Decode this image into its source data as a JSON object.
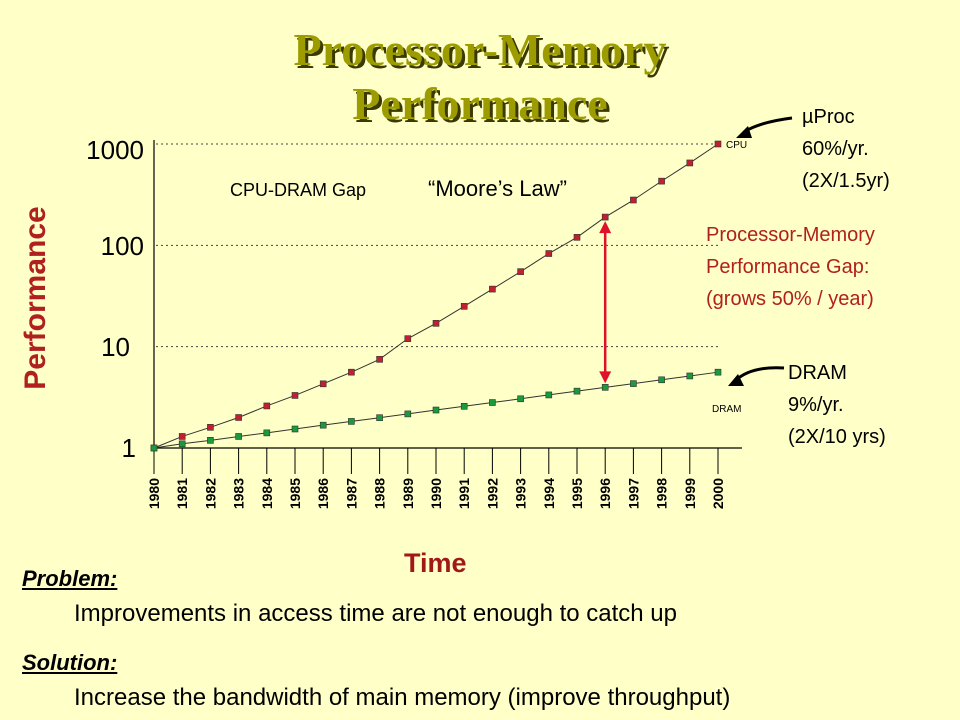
{
  "slide": {
    "title_line1": "Processor-Memory",
    "title_line2": "Performance",
    "problem_heading": "Problem:",
    "problem_text": "Improvements in access time are not enough to catch up",
    "solution_heading": "Solution:",
    "solution_text": "Increase the bandwidth of main memory (improve throughput)"
  },
  "annotations": {
    "cpu_tag": "CPU",
    "dram_tag": "DRAM",
    "gap_prefix": "CPU-DRAM Gap",
    "moores_law": "“Moore’s Law”",
    "uproc_lines": [
      "µProc",
      "60%/yr.",
      "(2X/1.5yr)"
    ],
    "gap_lines": [
      "Processor-Memory",
      "Performance Gap:",
      "(grows 50% / year)"
    ],
    "dram_lines": [
      "DRAM",
      "9%/yr.",
      "(2X/10 yrs)"
    ]
  },
  "chart_data": {
    "type": "line",
    "title": "Processor-Memory Performance",
    "xlabel": "Time",
    "ylabel": "Performance",
    "yscale": "log",
    "ylim": [
      1,
      1000
    ],
    "yticks": [
      "1",
      "10",
      "100",
      "1000"
    ],
    "grid": "dotted horizontal at 10, 100, 1000",
    "categories": [
      "1980",
      "1981",
      "1982",
      "1983",
      "1984",
      "1985",
      "1986",
      "1987",
      "1988",
      "1989",
      "1990",
      "1991",
      "1992",
      "1993",
      "1994",
      "1995",
      "1996",
      "1997",
      "1998",
      "1999",
      "2000"
    ],
    "series": [
      {
        "name": "CPU",
        "color": "#c02030",
        "values": [
          1,
          1.3,
          1.6,
          2.0,
          2.6,
          3.3,
          4.3,
          5.6,
          7.5,
          12,
          17,
          25,
          37,
          55,
          83,
          120,
          190,
          280,
          430,
          650,
          1000
        ]
      },
      {
        "name": "DRAM",
        "color": "#1a9a3a",
        "values": [
          1,
          1.1,
          1.19,
          1.3,
          1.41,
          1.54,
          1.68,
          1.83,
          1.99,
          2.17,
          2.37,
          2.58,
          2.81,
          3.06,
          3.34,
          3.64,
          3.97,
          4.32,
          4.71,
          5.14,
          5.6
        ]
      }
    ],
    "gap_marker_year": "1996"
  }
}
